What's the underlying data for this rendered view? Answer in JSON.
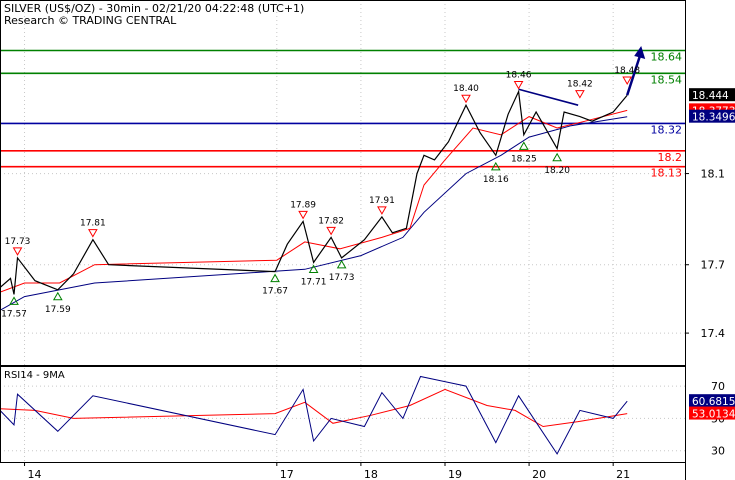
{
  "header": {
    "title": "SILVER (US$/OZ) - 30min - 02/21/20 04:22:48 (UTC+1)",
    "research": "Research © TRADING CENTRAL"
  },
  "price_panel": {
    "levels": [
      {
        "value": 18.64,
        "label": "18.64",
        "color": "#008000"
      },
      {
        "value": 18.54,
        "label": "18.54",
        "color": "#008000"
      },
      {
        "value": 18.32,
        "label": "18.32",
        "color": "#0000a0"
      },
      {
        "value": 18.2,
        "label": "18.2",
        "color": "#ff0000"
      },
      {
        "value": 18.13,
        "label": "18.13",
        "color": "#ff0000"
      }
    ],
    "current_tags": [
      {
        "value": 18.444,
        "label": "18.444",
        "bg": "#000000"
      },
      {
        "value": 18.3773,
        "label": "18.3773",
        "bg": "#ff0000"
      },
      {
        "value": 18.3496,
        "label": "18.3496",
        "bg": "#000080"
      }
    ]
  },
  "rsi_panel": {
    "title": "RSI14 - 9MA",
    "tags": [
      {
        "value": 60.6815,
        "label": "60.6815",
        "bg": "#000080"
      },
      {
        "value": 53.0134,
        "label": "53.0134",
        "bg": "#ff0000"
      }
    ]
  },
  "annotations": {
    "highs": [
      {
        "date": "2020-02-13 22:00",
        "value": 17.73,
        "label": "17.73"
      },
      {
        "date": "2020-02-14 19:30",
        "value": 17.81,
        "label": "17.81"
      },
      {
        "date": "2020-02-17 07:30",
        "value": 17.89,
        "label": "17.89"
      },
      {
        "date": "2020-02-17 15:30",
        "value": 17.82,
        "label": "17.82"
      },
      {
        "date": "2020-02-18 06:00",
        "value": 17.91,
        "label": "17.91"
      },
      {
        "date": "2020-02-19 06:00",
        "value": 18.4,
        "label": "18.40"
      },
      {
        "date": "2020-02-19 21:00",
        "value": 18.46,
        "label": "18.46"
      },
      {
        "date": "2020-02-20 14:30",
        "value": 18.42,
        "label": "18.42"
      },
      {
        "date": "2020-02-21 04:00",
        "value": 18.48,
        "label": "18.48"
      }
    ],
    "lows": [
      {
        "date": "2020-02-13 21:00",
        "value": 17.57,
        "label": "17.57"
      },
      {
        "date": "2020-02-14 09:30",
        "value": 17.59,
        "label": "17.59"
      },
      {
        "date": "2020-02-16 23:30",
        "value": 17.67,
        "label": "17.67"
      },
      {
        "date": "2020-02-17 10:30",
        "value": 17.71,
        "label": "17.71"
      },
      {
        "date": "2020-02-17 18:30",
        "value": 17.73,
        "label": "17.73"
      },
      {
        "date": "2020-02-19 14:30",
        "value": 18.16,
        "label": "18.16"
      },
      {
        "date": "2020-02-19 22:30",
        "value": 18.25,
        "label": "18.25"
      },
      {
        "date": "2020-02-20 08:00",
        "value": 18.2,
        "label": "18.20"
      }
    ]
  },
  "chart_data": {
    "type": "line",
    "title": "SILVER (US$/OZ) - 30min - 02/21/20 04:22:48 (UTC+1)",
    "x_start": "2020-02-13 17:00",
    "x_end": "2020-02-21 20:30",
    "x_tick_labels": [
      {
        "date": "2020-02-14 00:00",
        "label": "14"
      },
      {
        "date": "2020-02-17 00:00",
        "label": "17"
      },
      {
        "date": "2020-02-18 00:00",
        "label": "18"
      },
      {
        "date": "2020-02-19 00:00",
        "label": "19"
      },
      {
        "date": "2020-02-20 00:00",
        "label": "20"
      },
      {
        "date": "2020-02-21 00:00",
        "label": "21"
      }
    ],
    "price": {
      "ylim": [
        17.26,
        18.73
      ],
      "y_ticks": [
        17.4,
        17.7,
        18.1
      ],
      "series": [
        {
          "color": "#000000",
          "points": [
            [
              "2020-02-13 17:00",
              17.6
            ],
            [
              "2020-02-13 20:00",
              17.64
            ],
            [
              "2020-02-13 21:00",
              17.57
            ],
            [
              "2020-02-13 22:00",
              17.73
            ],
            [
              "2020-02-14 03:00",
              17.63
            ],
            [
              "2020-02-14 09:30",
              17.59
            ],
            [
              "2020-02-14 14:00",
              17.66
            ],
            [
              "2020-02-14 19:30",
              17.81
            ],
            [
              "2020-02-15 00:00",
              17.7
            ],
            [
              "2020-02-16 23:30",
              17.67
            ],
            [
              "2020-02-17 03:00",
              17.79
            ],
            [
              "2020-02-17 07:30",
              17.89
            ],
            [
              "2020-02-17 10:30",
              17.71
            ],
            [
              "2020-02-17 15:30",
              17.82
            ],
            [
              "2020-02-17 18:30",
              17.73
            ],
            [
              "2020-02-18 01:00",
              17.81
            ],
            [
              "2020-02-18 06:00",
              17.91
            ],
            [
              "2020-02-18 09:00",
              17.84
            ],
            [
              "2020-02-18 13:00",
              17.86
            ],
            [
              "2020-02-18 16:00",
              18.1
            ],
            [
              "2020-02-18 18:00",
              18.18
            ],
            [
              "2020-02-18 21:00",
              18.16
            ],
            [
              "2020-02-19 01:00",
              18.24
            ],
            [
              "2020-02-19 06:00",
              18.4
            ],
            [
              "2020-02-19 10:00",
              18.28
            ],
            [
              "2020-02-19 14:30",
              18.18
            ],
            [
              "2020-02-19 18:00",
              18.36
            ],
            [
              "2020-02-19 21:00",
              18.46
            ],
            [
              "2020-02-19 22:30",
              18.27
            ],
            [
              "2020-02-20 02:00",
              18.37
            ],
            [
              "2020-02-20 08:00",
              18.21
            ],
            [
              "2020-02-20 10:00",
              18.37
            ],
            [
              "2020-02-20 14:30",
              18.35
            ],
            [
              "2020-02-20 18:00",
              18.33
            ],
            [
              "2020-02-21 00:00",
              18.37
            ],
            [
              "2020-02-21 04:00",
              18.444
            ]
          ]
        },
        {
          "color": "#ff0000",
          "points": [
            [
              "2020-02-13 17:00",
              17.58
            ],
            [
              "2020-02-14 00:00",
              17.62
            ],
            [
              "2020-02-14 10:00",
              17.62
            ],
            [
              "2020-02-14 20:00",
              17.7
            ],
            [
              "2020-02-17 00:00",
              17.72
            ],
            [
              "2020-02-17 08:00",
              17.8
            ],
            [
              "2020-02-17 18:00",
              17.77
            ],
            [
              "2020-02-18 06:00",
              17.82
            ],
            [
              "2020-02-18 14:00",
              17.86
            ],
            [
              "2020-02-18 18:00",
              18.05
            ],
            [
              "2020-02-19 00:00",
              18.16
            ],
            [
              "2020-02-19 08:00",
              18.3
            ],
            [
              "2020-02-19 16:00",
              18.27
            ],
            [
              "2020-02-20 00:00",
              18.35
            ],
            [
              "2020-02-20 08:00",
              18.3
            ],
            [
              "2020-02-20 16:00",
              18.33
            ],
            [
              "2020-02-21 04:00",
              18.3773
            ]
          ]
        },
        {
          "color": "#000080",
          "points": [
            [
              "2020-02-13 17:00",
              17.5
            ],
            [
              "2020-02-14 00:00",
              17.56
            ],
            [
              "2020-02-14 20:00",
              17.62
            ],
            [
              "2020-02-17 08:00",
              17.68
            ],
            [
              "2020-02-18 00:00",
              17.74
            ],
            [
              "2020-02-18 12:00",
              17.82
            ],
            [
              "2020-02-18 18:00",
              17.93
            ],
            [
              "2020-02-19 06:00",
              18.1
            ],
            [
              "2020-02-19 16:00",
              18.18
            ],
            [
              "2020-02-20 00:00",
              18.26
            ],
            [
              "2020-02-20 12:00",
              18.31
            ],
            [
              "2020-02-21 04:00",
              18.3496
            ]
          ]
        }
      ],
      "trendline": {
        "color": "#000080",
        "from": [
          "2020-02-19 21:00",
          18.47
        ],
        "to": [
          "2020-02-20 14:00",
          18.4
        ]
      },
      "forecast_arrow": {
        "color": "#000080",
        "from": [
          "2020-02-21 04:00",
          18.444
        ],
        "to": [
          "2020-02-21 08:00",
          18.66
        ]
      }
    },
    "rsi": {
      "title": "RSI14 - 9MA",
      "ylim": [
        23,
        80
      ],
      "y_ticks": [
        30,
        50,
        70
      ],
      "series": [
        {
          "color": "#000080",
          "points": [
            [
              "2020-02-13 17:00",
              55
            ],
            [
              "2020-02-13 21:00",
              46
            ],
            [
              "2020-02-13 22:00",
              65
            ],
            [
              "2020-02-14 09:30",
              42
            ],
            [
              "2020-02-14 19:30",
              64
            ],
            [
              "2020-02-16 23:30",
              40
            ],
            [
              "2020-02-17 07:30",
              68
            ],
            [
              "2020-02-17 10:30",
              36
            ],
            [
              "2020-02-17 15:30",
              50
            ],
            [
              "2020-02-18 01:00",
              45
            ],
            [
              "2020-02-18 06:00",
              66
            ],
            [
              "2020-02-18 12:00",
              50
            ],
            [
              "2020-02-18 17:00",
              76
            ],
            [
              "2020-02-19 06:00",
              70
            ],
            [
              "2020-02-19 14:30",
              35
            ],
            [
              "2020-02-19 21:00",
              64
            ],
            [
              "2020-02-20 08:00",
              28
            ],
            [
              "2020-02-20 14:30",
              55
            ],
            [
              "2020-02-21 00:00",
              50
            ],
            [
              "2020-02-21 04:00",
              60.6815
            ]
          ]
        },
        {
          "color": "#ff0000",
          "points": [
            [
              "2020-02-13 17:00",
              56
            ],
            [
              "2020-02-14 03:00",
              55
            ],
            [
              "2020-02-14 14:00",
              50
            ],
            [
              "2020-02-16 23:30",
              53
            ],
            [
              "2020-02-17 08:00",
              60
            ],
            [
              "2020-02-17 16:00",
              47
            ],
            [
              "2020-02-18 03:00",
              52
            ],
            [
              "2020-02-18 14:00",
              58
            ],
            [
              "2020-02-19 00:00",
              68
            ],
            [
              "2020-02-19 12:00",
              58
            ],
            [
              "2020-02-19 20:00",
              55
            ],
            [
              "2020-02-20 04:00",
              45
            ],
            [
              "2020-02-20 14:00",
              48
            ],
            [
              "2020-02-21 04:00",
              53.0134
            ]
          ]
        }
      ]
    }
  }
}
